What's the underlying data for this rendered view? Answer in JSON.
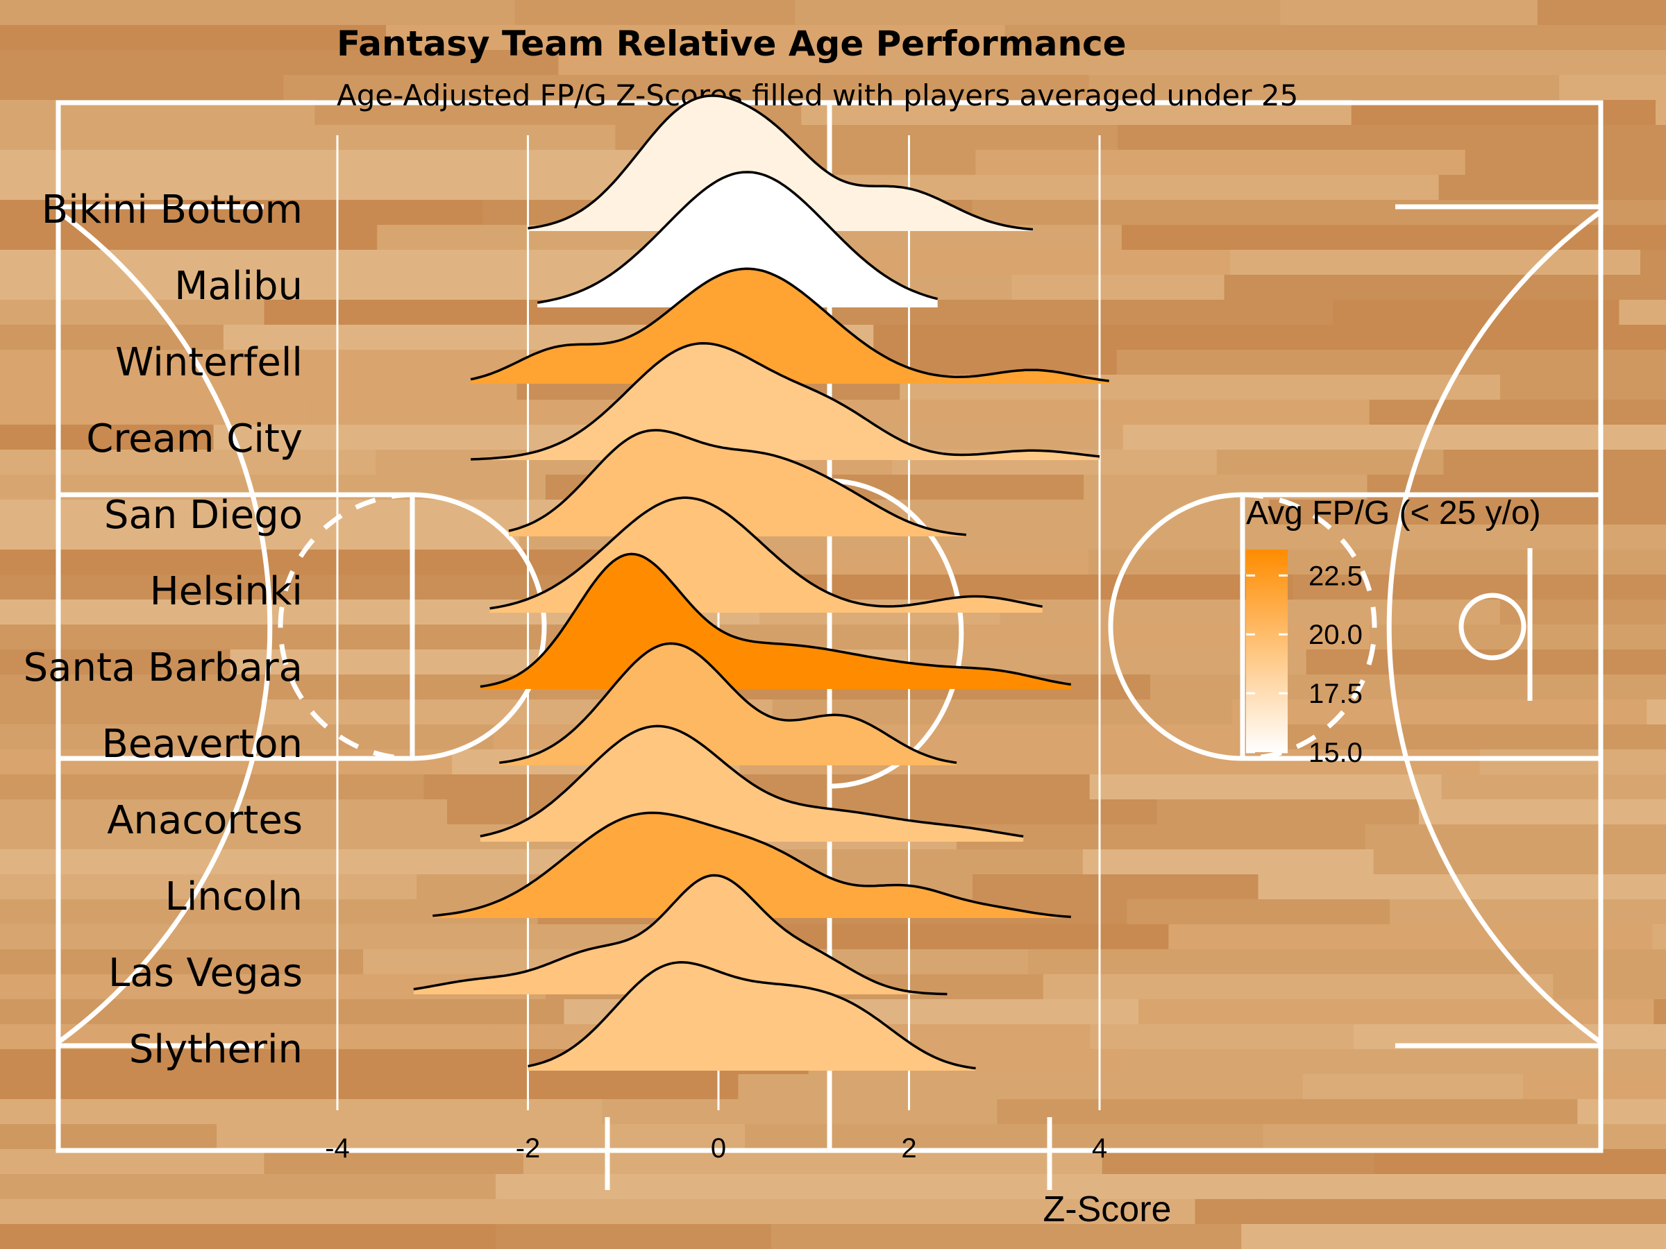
{
  "chart_data": {
    "type": "ridgeline-density",
    "title": "Fantasy Team Relative Age Performance",
    "subtitle": "Age-Adjusted FP/G Z-Scores filled with players averaged under 25",
    "xlabel": "Z-Score",
    "ylabel": "",
    "xlim": [
      -4.5,
      4.8
    ],
    "x_ticks": [
      -4,
      -2,
      0,
      2,
      4
    ],
    "x_tick_labels": [
      "-4",
      "-2",
      "0",
      "2",
      "4"
    ],
    "grid": true,
    "legend": {
      "title": "Avg FP/G (< 25 y/o)",
      "position": "right",
      "range": [
        15.0,
        23.6
      ],
      "ticks": [
        22.5,
        20.0,
        17.5,
        15.0
      ],
      "tick_labels": [
        "22.5",
        "20.0",
        "17.5",
        "15.0"
      ],
      "color_low": "#ffffff",
      "color_high": "#ff8c00"
    },
    "series": [
      {
        "name": "Bikini Bottom",
        "avg_fpg": 16.0,
        "x_min": -2.0,
        "x_max": 3.3,
        "peaks": [
          {
            "mu": -0.2,
            "sigma": 0.65,
            "h": 1.0
          },
          {
            "mu": 0.7,
            "sigma": 0.45,
            "h": 0.35
          },
          {
            "mu": 1.9,
            "sigma": 0.55,
            "h": 0.33
          }
        ]
      },
      {
        "name": "Malibu",
        "avg_fpg": 15.0,
        "x_min": -1.9,
        "x_max": 2.3,
        "peaks": [
          {
            "mu": 0.3,
            "sigma": 0.85,
            "h": 1.0
          }
        ]
      },
      {
        "name": "Winterfell",
        "avg_fpg": 21.9,
        "x_min": -2.6,
        "x_max": 4.1,
        "peaks": [
          {
            "mu": -1.7,
            "sigma": 0.45,
            "h": 0.22
          },
          {
            "mu": 0.3,
            "sigma": 0.85,
            "h": 0.85
          },
          {
            "mu": 3.3,
            "sigma": 0.45,
            "h": 0.1
          }
        ]
      },
      {
        "name": "Cream City",
        "avg_fpg": 19.0,
        "x_min": -2.6,
        "x_max": 4.0,
        "peaks": [
          {
            "mu": -0.2,
            "sigma": 0.75,
            "h": 0.85
          },
          {
            "mu": 1.2,
            "sigma": 0.55,
            "h": 0.3
          },
          {
            "mu": 3.3,
            "sigma": 0.5,
            "h": 0.07
          }
        ]
      },
      {
        "name": "San Diego",
        "avg_fpg": 19.7,
        "x_min": -2.2,
        "x_max": 2.6,
        "peaks": [
          {
            "mu": -0.75,
            "sigma": 0.6,
            "h": 0.75
          },
          {
            "mu": 0.4,
            "sigma": 0.5,
            "h": 0.4
          },
          {
            "mu": 1.2,
            "sigma": 0.55,
            "h": 0.3
          }
        ]
      },
      {
        "name": "Helsinki",
        "avg_fpg": 19.5,
        "x_min": -2.4,
        "x_max": 3.4,
        "peaks": [
          {
            "mu": -0.35,
            "sigma": 0.8,
            "h": 0.85
          },
          {
            "mu": 2.7,
            "sigma": 0.5,
            "h": 0.12
          }
        ]
      },
      {
        "name": "Santa Barbara",
        "avg_fpg": 23.6,
        "x_min": -2.5,
        "x_max": 3.7,
        "peaks": [
          {
            "mu": -0.95,
            "sigma": 0.55,
            "h": 0.95
          },
          {
            "mu": 0.6,
            "sigma": 0.8,
            "h": 0.3
          },
          {
            "mu": 2.2,
            "sigma": 0.8,
            "h": 0.13
          },
          {
            "mu": 3.0,
            "sigma": 0.4,
            "h": 0.05
          }
        ]
      },
      {
        "name": "Beaverton",
        "avg_fpg": 20.3,
        "x_min": -2.3,
        "x_max": 2.5,
        "peaks": [
          {
            "mu": -0.5,
            "sigma": 0.65,
            "h": 0.9
          },
          {
            "mu": 1.3,
            "sigma": 0.5,
            "h": 0.35
          }
        ]
      },
      {
        "name": "Anacortes",
        "avg_fpg": 19.3,
        "x_min": -2.5,
        "x_max": 3.2,
        "peaks": [
          {
            "mu": -0.65,
            "sigma": 0.75,
            "h": 0.85
          },
          {
            "mu": 1.3,
            "sigma": 0.7,
            "h": 0.2
          },
          {
            "mu": 2.6,
            "sigma": 0.5,
            "h": 0.07
          }
        ]
      },
      {
        "name": "Lincoln",
        "avg_fpg": 21.5,
        "x_min": -3.0,
        "x_max": 3.7,
        "peaks": [
          {
            "mu": -0.8,
            "sigma": 0.8,
            "h": 0.75
          },
          {
            "mu": 0.6,
            "sigma": 0.6,
            "h": 0.35
          },
          {
            "mu": 2.0,
            "sigma": 0.45,
            "h": 0.21
          },
          {
            "mu": 2.9,
            "sigma": 0.4,
            "h": 0.06
          }
        ]
      },
      {
        "name": "Las Vegas",
        "avg_fpg": 19.4,
        "x_min": -3.2,
        "x_max": 2.4,
        "peaks": [
          {
            "mu": -2.5,
            "sigma": 0.5,
            "h": 0.1
          },
          {
            "mu": -1.3,
            "sigma": 0.5,
            "h": 0.3
          },
          {
            "mu": -0.05,
            "sigma": 0.5,
            "h": 0.85
          },
          {
            "mu": 1.0,
            "sigma": 0.45,
            "h": 0.25
          }
        ]
      },
      {
        "name": "Slytherin",
        "avg_fpg": 19.2,
        "x_min": -2.0,
        "x_max": 2.7,
        "peaks": [
          {
            "mu": -0.5,
            "sigma": 0.6,
            "h": 0.75
          },
          {
            "mu": 0.7,
            "sigma": 0.55,
            "h": 0.45
          },
          {
            "mu": 1.5,
            "sigma": 0.5,
            "h": 0.3
          }
        ]
      }
    ]
  }
}
